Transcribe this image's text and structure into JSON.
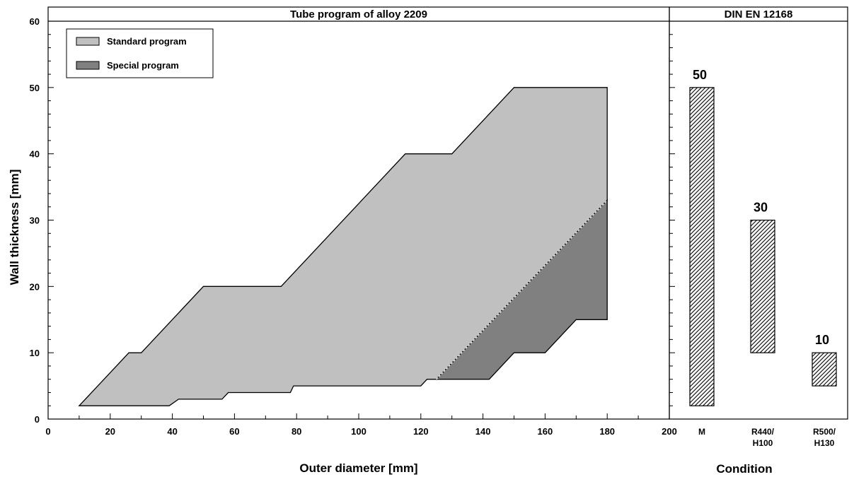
{
  "chart_data": [
    {
      "type": "area",
      "title": "Tube program of alloy 2209",
      "xlabel": "Outer diameter [mm]",
      "ylabel": "Wall thickness [mm]",
      "xlim": [
        0,
        200
      ],
      "ylim": [
        0,
        60
      ],
      "x_ticks": [
        0,
        20,
        40,
        60,
        80,
        100,
        120,
        140,
        160,
        180,
        200
      ],
      "y_ticks": [
        0,
        10,
        20,
        30,
        40,
        50,
        60
      ],
      "grid": false,
      "legend_position": "top-left",
      "legend": [
        {
          "label": "Standard program",
          "color": "#c0c0c0"
        },
        {
          "label": "Special program",
          "color": "#808080"
        }
      ],
      "series": [
        {
          "name": "Standard program",
          "color": "#c0c0c0",
          "polygon": [
            [
              10,
              2
            ],
            [
              26,
              10
            ],
            [
              30,
              10
            ],
            [
              50,
              20
            ],
            [
              75,
              20
            ],
            [
              115,
              40
            ],
            [
              130,
              40
            ],
            [
              150,
              50
            ],
            [
              180,
              50
            ],
            [
              180,
              33
            ],
            [
              125,
              6
            ],
            [
              122,
              6
            ],
            [
              120,
              5
            ],
            [
              79,
              5
            ],
            [
              78,
              4
            ],
            [
              58,
              4
            ],
            [
              56,
              3
            ],
            [
              42,
              3
            ],
            [
              39,
              2
            ]
          ]
        },
        {
          "name": "Special program",
          "color": "#808080",
          "polygon": [
            [
              125,
              6
            ],
            [
              180,
              33
            ],
            [
              180,
              15
            ],
            [
              170,
              15
            ],
            [
              160,
              10
            ],
            [
              150,
              10
            ],
            [
              142,
              6
            ]
          ]
        }
      ]
    },
    {
      "type": "bar",
      "title": "DIN EN 12168",
      "xlabel": "Condition",
      "ylim": [
        0,
        60
      ],
      "categories": [
        "M",
        "R440/\nH100",
        "R500/\nH130"
      ],
      "category_lines": [
        [
          "M"
        ],
        [
          "R440/",
          "H100"
        ],
        [
          "R500/",
          "H130"
        ]
      ],
      "ranges": [
        [
          2,
          50
        ],
        [
          10,
          30
        ],
        [
          5,
          10
        ]
      ],
      "value_labels": [
        "50",
        "30",
        "10"
      ],
      "fill": "hatched"
    }
  ]
}
